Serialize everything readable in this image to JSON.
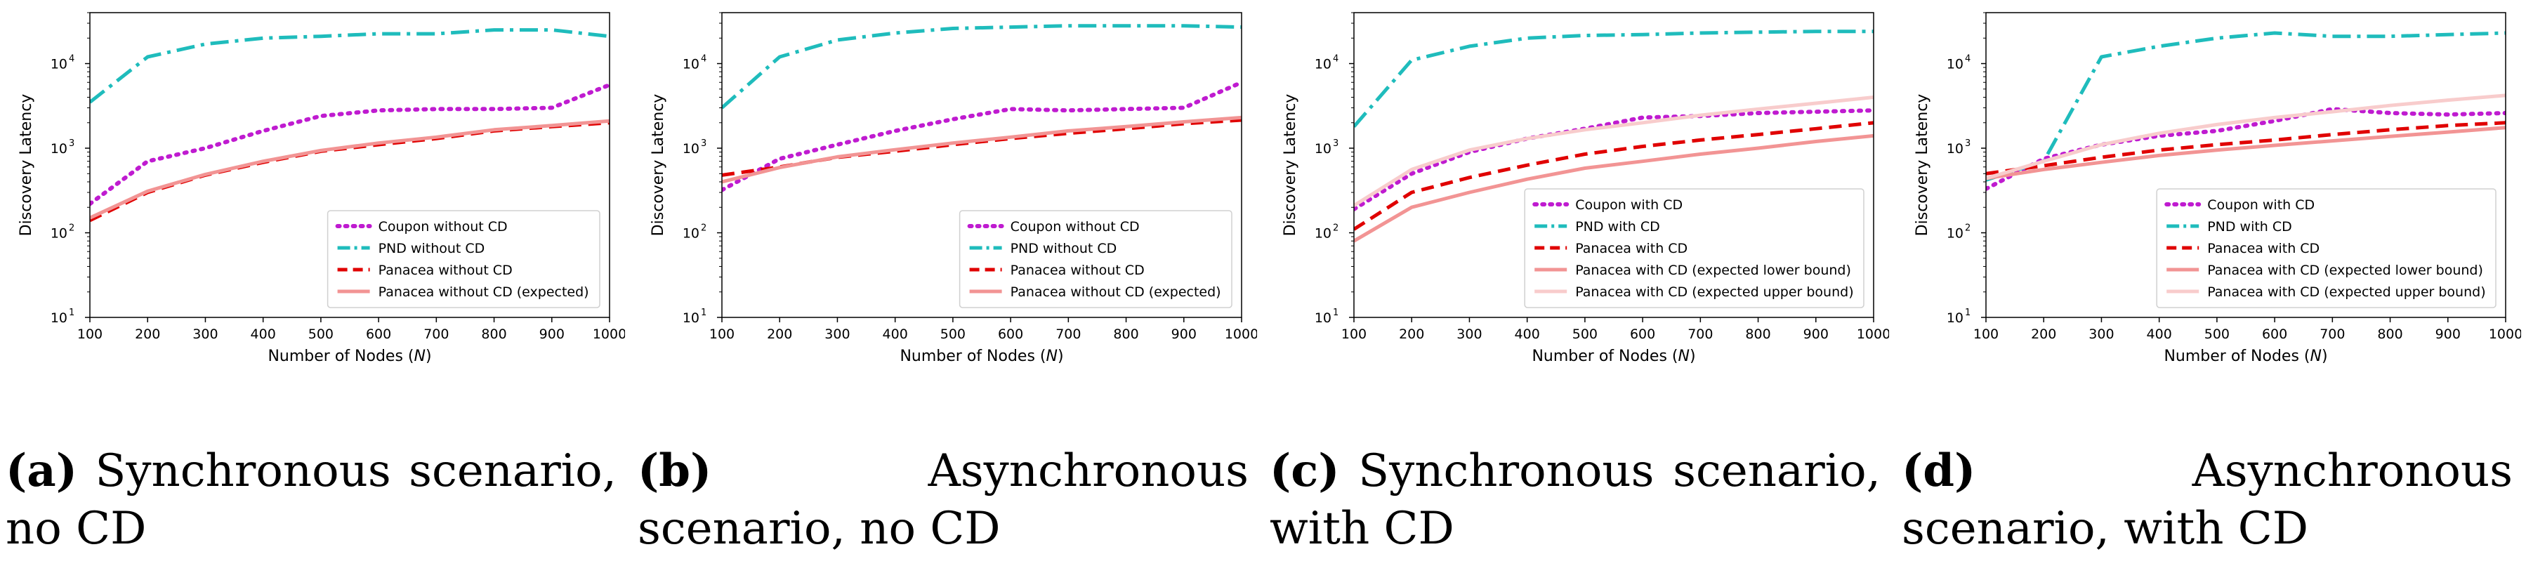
{
  "chart_data": [
    {
      "type": "line",
      "label": "(a)",
      "caption": "Synchronous scenario, no CD",
      "xlabel_text": "Number of Nodes (",
      "xlabel_var": "N",
      "xlabel_end": ")",
      "ylabel": "Discovery Latency",
      "yscale": "log",
      "xlim": [
        100,
        1000
      ],
      "ylim": [
        10,
        40000
      ],
      "xticks": [
        100,
        200,
        300,
        400,
        500,
        600,
        700,
        800,
        900,
        1000
      ],
      "yticks": [
        {
          "value": 10,
          "label": "10",
          "exp": "1"
        },
        {
          "value": 100,
          "label": "10",
          "exp": "2"
        },
        {
          "value": 1000,
          "label": "10",
          "exp": "3"
        },
        {
          "value": 10000,
          "label": "10",
          "exp": "4"
        }
      ],
      "legend_position": "lower-right",
      "x": [
        100,
        200,
        300,
        400,
        500,
        600,
        700,
        800,
        900,
        1000
      ],
      "series": [
        {
          "name": "Coupon without CD",
          "color": "#bf1bd0",
          "style": "dotted",
          "values": [
            220,
            700,
            1000,
            1600,
            2400,
            2800,
            2900,
            2900,
            3000,
            5600
          ]
        },
        {
          "name": "PND without CD",
          "color": "#1fbcbc",
          "style": "dashdot",
          "values": [
            3500,
            12000,
            17000,
            20000,
            21000,
            22500,
            22500,
            25000,
            25000,
            21000
          ]
        },
        {
          "name": "Panacea without CD",
          "color": "#e00000",
          "style": "dashed",
          "values": [
            140,
            300,
            480,
            680,
            920,
            1100,
            1300,
            1600,
            1800,
            2000
          ]
        },
        {
          "name": "Panacea without CD (expected)",
          "color": "#f29494",
          "style": "solid",
          "values": [
            150,
            310,
            490,
            700,
            940,
            1150,
            1350,
            1650,
            1850,
            2100
          ]
        }
      ]
    },
    {
      "type": "line",
      "label": "(b)",
      "caption": "Asynchronous scenario, no CD",
      "xlabel_text": "Number of Nodes (",
      "xlabel_var": "N",
      "xlabel_end": ")",
      "ylabel": "Discovery Latency",
      "yscale": "log",
      "xlim": [
        100,
        1000
      ],
      "ylim": [
        10,
        40000
      ],
      "xticks": [
        100,
        200,
        300,
        400,
        500,
        600,
        700,
        800,
        900,
        1000
      ],
      "yticks": [
        {
          "value": 10,
          "label": "10",
          "exp": "1"
        },
        {
          "value": 100,
          "label": "10",
          "exp": "2"
        },
        {
          "value": 1000,
          "label": "10",
          "exp": "3"
        },
        {
          "value": 10000,
          "label": "10",
          "exp": "4"
        }
      ],
      "legend_position": "lower-right",
      "x": [
        100,
        200,
        300,
        400,
        500,
        600,
        700,
        800,
        900,
        1000
      ],
      "series": [
        {
          "name": "Coupon without CD",
          "color": "#bf1bd0",
          "style": "dotted",
          "values": [
            320,
            750,
            1100,
            1600,
            2200,
            2900,
            2800,
            2900,
            3000,
            6000
          ]
        },
        {
          "name": "PND without CD",
          "color": "#1fbcbc",
          "style": "dashdot",
          "values": [
            3000,
            12000,
            19000,
            23000,
            26000,
            27000,
            28000,
            28000,
            28000,
            27000
          ]
        },
        {
          "name": "Panacea without CD",
          "color": "#e00000",
          "style": "dashed",
          "values": [
            480,
            600,
            780,
            920,
            1100,
            1300,
            1500,
            1700,
            1950,
            2150
          ]
        },
        {
          "name": "Panacea without CD (expected)",
          "color": "#f29494",
          "style": "solid",
          "values": [
            400,
            590,
            790,
            960,
            1150,
            1350,
            1600,
            1800,
            2050,
            2300
          ]
        }
      ]
    },
    {
      "type": "line",
      "label": "(c)",
      "caption": "Synchronous scenario, with CD",
      "xlabel_text": "Number of Nodes (",
      "xlabel_var": "N",
      "xlabel_end": ")",
      "ylabel": "Discovery Latency",
      "yscale": "log",
      "xlim": [
        100,
        1000
      ],
      "ylim": [
        10,
        40000
      ],
      "xticks": [
        100,
        200,
        300,
        400,
        500,
        600,
        700,
        800,
        900,
        1000
      ],
      "yticks": [
        {
          "value": 10,
          "label": "10",
          "exp": "1"
        },
        {
          "value": 100,
          "label": "10",
          "exp": "2"
        },
        {
          "value": 1000,
          "label": "10",
          "exp": "3"
        },
        {
          "value": 10000,
          "label": "10",
          "exp": "4"
        }
      ],
      "legend_position": "lower-right",
      "x": [
        100,
        200,
        300,
        400,
        500,
        600,
        700,
        800,
        900,
        1000
      ],
      "series": [
        {
          "name": "Coupon with CD",
          "color": "#bf1bd0",
          "style": "dotted",
          "values": [
            190,
            500,
            900,
            1300,
            1700,
            2300,
            2400,
            2600,
            2700,
            2800
          ]
        },
        {
          "name": "PND with CD",
          "color": "#1fbcbc",
          "style": "dashdot",
          "values": [
            1800,
            11000,
            16000,
            20000,
            21500,
            22000,
            23000,
            23500,
            24000,
            24000
          ]
        },
        {
          "name": "Panacea with CD",
          "color": "#e00000",
          "style": "dashed",
          "values": [
            110,
            300,
            450,
            630,
            850,
            1050,
            1250,
            1450,
            1700,
            2000
          ]
        },
        {
          "name": "Panacea with CD (expected lower bound)",
          "color": "#f29494",
          "style": "solid",
          "values": [
            80,
            200,
            300,
            430,
            580,
            700,
            850,
            1000,
            1200,
            1400
          ]
        },
        {
          "name": "Panacea with CD (expected upper bound)",
          "color": "#f8cccc",
          "style": "solid",
          "values": [
            210,
            560,
            950,
            1300,
            1650,
            2000,
            2450,
            2900,
            3400,
            4000
          ]
        }
      ]
    },
    {
      "type": "line",
      "label": "(d)",
      "caption": "Asynchronous scenario, with CD",
      "xlabel_text": "Number of Nodes (",
      "xlabel_var": "N",
      "xlabel_end": ")",
      "ylabel": "Discovery Latency",
      "yscale": "log",
      "xlim": [
        100,
        1000
      ],
      "ylim": [
        10,
        40000
      ],
      "xticks": [
        100,
        200,
        300,
        400,
        500,
        600,
        700,
        800,
        900,
        1000
      ],
      "yticks": [
        {
          "value": 10,
          "label": "10",
          "exp": "1"
        },
        {
          "value": 100,
          "label": "10",
          "exp": "2"
        },
        {
          "value": 1000,
          "label": "10",
          "exp": "3"
        },
        {
          "value": 10000,
          "label": "10",
          "exp": "4"
        }
      ],
      "legend_position": "lower-right",
      "x": [
        100,
        200,
        300,
        400,
        500,
        600,
        700,
        800,
        900,
        1000
      ],
      "series": [
        {
          "name": "Coupon with CD",
          "color": "#bf1bd0",
          "style": "dotted",
          "values": [
            330,
            750,
            1100,
            1400,
            1600,
            2100,
            2900,
            2600,
            2500,
            2600
          ]
        },
        {
          "name": "PND with CD",
          "color": "#1fbcbc",
          "style": "dashdot",
          "values": [
            420,
            700,
            12000,
            16000,
            20000,
            23000,
            21000,
            21000,
            22000,
            23000
          ]
        },
        {
          "name": "Panacea with CD",
          "color": "#e00000",
          "style": "dashed",
          "values": [
            500,
            620,
            780,
            950,
            1100,
            1250,
            1450,
            1650,
            1850,
            2000
          ]
        },
        {
          "name": "Panacea with CD (expected lower bound)",
          "color": "#f29494",
          "style": "solid",
          "values": [
            440,
            560,
            680,
            820,
            950,
            1080,
            1220,
            1380,
            1550,
            1750
          ]
        },
        {
          "name": "Panacea with CD (expected upper bound)",
          "color": "#f8cccc",
          "style": "solid",
          "values": [
            440,
            700,
            1100,
            1500,
            1900,
            2300,
            2700,
            3200,
            3700,
            4200
          ]
        }
      ]
    }
  ]
}
